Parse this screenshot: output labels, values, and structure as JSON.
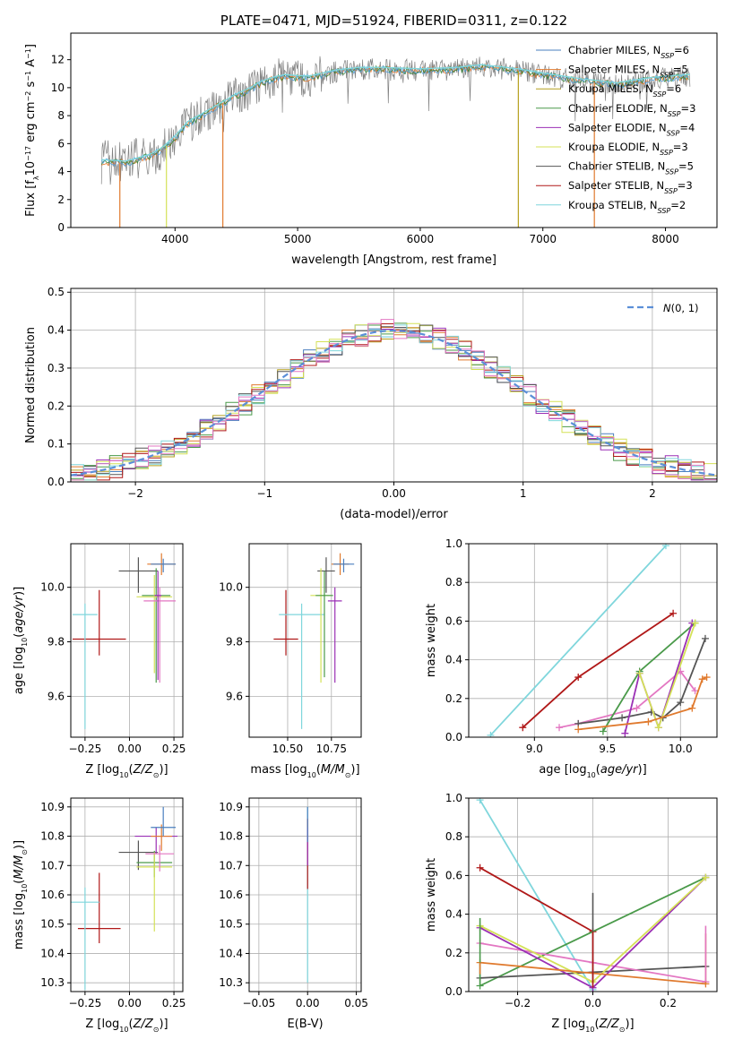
{
  "chart_data": [
    {
      "id": "spectrum",
      "type": "line",
      "title": "PLATE=0471, MJD=51924, FIBERID=0311, z=0.122",
      "xlabel": "wavelength [Angstrom, rest frame]",
      "ylabel": "Flux [f_λ 10^-17 erg cm^-2 s^-1 A^-1]",
      "xlim": [
        3150,
        8420
      ],
      "ylim": [
        0,
        13.9
      ],
      "xticks": [
        4000,
        5000,
        6000,
        7000,
        8000
      ],
      "yticks": [
        0,
        2,
        4,
        6,
        8,
        10,
        12
      ],
      "data_color": "#808080",
      "model_colors": [
        "#e66e1e",
        "#2a7f2a",
        "#4f9fdc"
      ],
      "wavelength_range": [
        3400,
        8200
      ],
      "continuum": [
        [
          3400,
          4.7
        ],
        [
          3600,
          4.6
        ],
        [
          3800,
          5.1
        ],
        [
          3900,
          5.6
        ],
        [
          4000,
          6.4
        ],
        [
          4100,
          7.4
        ],
        [
          4200,
          7.9
        ],
        [
          4300,
          8.4
        ],
        [
          4400,
          8.9
        ],
        [
          4500,
          9.4
        ],
        [
          4600,
          9.8
        ],
        [
          4700,
          10.3
        ],
        [
          4800,
          10.6
        ],
        [
          4900,
          10.8
        ],
        [
          5000,
          10.7
        ],
        [
          5100,
          10.7
        ],
        [
          5200,
          10.9
        ],
        [
          5300,
          11.1
        ],
        [
          5500,
          11.3
        ],
        [
          5700,
          11.3
        ],
        [
          6000,
          11.2
        ],
        [
          6300,
          11.3
        ],
        [
          6500,
          11.5
        ],
        [
          6800,
          11.2
        ],
        [
          7000,
          10.9
        ],
        [
          7300,
          10.5
        ],
        [
          7600,
          10.2
        ],
        [
          7900,
          10.6
        ],
        [
          8200,
          10.8
        ]
      ],
      "legend": [
        {
          "label": "Chabrier MILES, N_SSP=6",
          "color": "#4a7fbf"
        },
        {
          "label": "Salpeter MILES, N_SSP=5",
          "color": "#e07a2e"
        },
        {
          "label": "Kroupa MILES, N_SSP=6",
          "color": "#b5a01e"
        },
        {
          "label": "Chabrier ELODIE, N_SSP=3",
          "color": "#4a9a4a"
        },
        {
          "label": "Salpeter ELODIE, N_SSP=4",
          "color": "#9b30b5"
        },
        {
          "label": "Kroupa ELODIE, N_SSP=3",
          "color": "#d4e157"
        },
        {
          "label": "Chabrier STELIB, N_SSP=5",
          "color": "#555555"
        },
        {
          "label": "Salpeter STELIB, N_SSP=3",
          "color": "#b01818"
        },
        {
          "label": "Kroupa STELIB, N_SSP=2",
          "color": "#7fd6dc"
        }
      ]
    },
    {
      "id": "residuals",
      "type": "line",
      "xlabel": "(data-model)/error",
      "ylabel": "Normed distribution",
      "xlim": [
        -2.5,
        2.5
      ],
      "ylim": [
        0,
        0.51
      ],
      "xticks": [
        -2,
        -1,
        0,
        1,
        2
      ],
      "yticks": [
        0.0,
        0.1,
        0.2,
        0.3,
        0.4,
        0.5
      ],
      "bin_width": 0.1,
      "legend": "N(0,1)",
      "gaussian_color": "#5b8fd8",
      "hist_colors": [
        "#4a7fbf",
        "#e07a2e",
        "#b5a01e",
        "#4a9a4a",
        "#9b30b5",
        "#d4e157",
        "#555555",
        "#b01818",
        "#7fd6dc",
        "#e377c2"
      ]
    },
    {
      "id": "age-vs-Z",
      "type": "scatter",
      "xlabel": "Z [log10(Z/Z_sun)]",
      "ylabel": "age [log10(age/yr)]",
      "xlim": [
        -0.33,
        0.3
      ],
      "ylim": [
        9.45,
        10.16
      ],
      "xticks": [
        -0.25,
        0.0,
        0.25
      ],
      "yticks": [
        9.6,
        9.8,
        10.0
      ],
      "points": [
        {
          "x": -0.17,
          "y": 9.81,
          "xerr": 0.15,
          "yerr_lo": 0.06,
          "yerr_hi": 0.18,
          "color": "#b01818"
        },
        {
          "x": -0.25,
          "y": 9.9,
          "xerr": 0.07,
          "yerr_lo": 0.42,
          "yerr_hi": 0.04,
          "color": "#7fd6dc"
        },
        {
          "x": 0.05,
          "y": 10.06,
          "xerr": 0.11,
          "yerr_lo": 0.08,
          "yerr_hi": 0.05,
          "color": "#555555"
        },
        {
          "x": 0.15,
          "y": 9.97,
          "xerr": 0.08,
          "yerr_lo": 0.32,
          "yerr_hi": 0.1,
          "color": "#4a9a4a"
        },
        {
          "x": 0.14,
          "y": 9.965,
          "xerr": 0.1,
          "yerr_lo": 0.28,
          "yerr_hi": 0.08,
          "color": "#d4e157"
        },
        {
          "x": 0.17,
          "y": 9.95,
          "xerr": 0.09,
          "yerr_lo": 0.3,
          "yerr_hi": 0.05,
          "color": "#e377c2"
        },
        {
          "x": 0.16,
          "y": 9.97,
          "xerr": 0.02,
          "yerr_lo": 0.31,
          "yerr_hi": 0.09,
          "color": "#9b30b5"
        },
        {
          "x": 0.18,
          "y": 10.085,
          "xerr": 0.08,
          "yerr_lo": 0.04,
          "yerr_hi": 0.04,
          "color": "#e07a2e"
        },
        {
          "x": 0.19,
          "y": 10.085,
          "xerr": 0.07,
          "yerr_lo": 0.03,
          "yerr_hi": 0.02,
          "color": "#4a7fbf"
        }
      ]
    },
    {
      "id": "age-vs-mass",
      "type": "scatter",
      "xlabel": "mass [log10(M/M_sun)]",
      "ylabel": "",
      "xlim": [
        10.28,
        10.92
      ],
      "ylim": [
        9.45,
        10.16
      ],
      "xticks": [
        10.5,
        10.75
      ],
      "yticks": [
        9.6,
        9.8,
        10.0
      ],
      "points": [
        {
          "x": 10.49,
          "y": 9.81,
          "xerr": 0.07,
          "yerr_lo": 0.06,
          "yerr_hi": 0.18,
          "color": "#b01818"
        },
        {
          "x": 10.58,
          "y": 9.9,
          "xerr": 0.13,
          "yerr_lo": 0.42,
          "yerr_hi": 0.04,
          "color": "#7fd6dc"
        },
        {
          "x": 10.72,
          "y": 10.06,
          "xerr": 0.05,
          "yerr_lo": 0.08,
          "yerr_hi": 0.05,
          "color": "#555555"
        },
        {
          "x": 10.69,
          "y": 9.97,
          "xerr": 0.06,
          "yerr_lo": 0.32,
          "yerr_hi": 0.1,
          "color": "#d4e157"
        },
        {
          "x": 10.71,
          "y": 9.97,
          "xerr": 0.05,
          "yerr_lo": 0.3,
          "yerr_hi": 0.09,
          "color": "#4a9a4a"
        },
        {
          "x": 10.77,
          "y": 9.95,
          "xerr": 0.04,
          "yerr_lo": 0.3,
          "yerr_hi": 0.05,
          "color": "#9b30b5"
        },
        {
          "x": 10.8,
          "y": 10.085,
          "xerr": 0.05,
          "yerr_lo": 0.04,
          "yerr_hi": 0.04,
          "color": "#e07a2e"
        },
        {
          "x": 10.82,
          "y": 10.085,
          "xerr": 0.06,
          "yerr_lo": 0.03,
          "yerr_hi": 0.02,
          "color": "#4a7fbf"
        }
      ]
    },
    {
      "id": "weight-vs-age",
      "type": "line",
      "xlabel": "age [log10(age/yr)]",
      "ylabel": "mass weight",
      "xlim": [
        8.55,
        10.25
      ],
      "ylim": [
        0,
        1.0
      ],
      "xticks": [
        9.0,
        9.5,
        10.0
      ],
      "yticks": [
        0.0,
        0.2,
        0.4,
        0.6,
        0.8,
        1.0
      ],
      "series": [
        {
          "color": "#7fd6dc",
          "points": [
            [
              8.7,
              0.01
            ],
            [
              9.9,
              0.99
            ]
          ]
        },
        {
          "color": "#b01818",
          "points": [
            [
              8.92,
              0.05
            ],
            [
              9.3,
              0.31
            ],
            [
              9.95,
              0.64
            ]
          ]
        },
        {
          "color": "#e377c2",
          "points": [
            [
              9.17,
              0.05
            ],
            [
              9.3,
              0.07
            ],
            [
              9.7,
              0.15
            ],
            [
              10.0,
              0.34
            ],
            [
              10.1,
              0.24
            ]
          ]
        },
        {
          "color": "#555555",
          "points": [
            [
              9.3,
              0.07
            ],
            [
              9.6,
              0.1
            ],
            [
              9.8,
              0.13
            ],
            [
              9.88,
              0.1
            ],
            [
              10.0,
              0.18
            ],
            [
              10.17,
              0.51
            ]
          ]
        },
        {
          "color": "#4a9a4a",
          "points": [
            [
              9.47,
              0.03
            ],
            [
              9.72,
              0.34
            ],
            [
              10.1,
              0.59
            ]
          ]
        },
        {
          "color": "#9b30b5",
          "points": [
            [
              9.62,
              0.02
            ],
            [
              9.72,
              0.33
            ],
            [
              9.85,
              0.05
            ],
            [
              10.08,
              0.59
            ]
          ]
        },
        {
          "color": "#d4e157",
          "points": [
            [
              9.72,
              0.33
            ],
            [
              9.85,
              0.05
            ],
            [
              10.1,
              0.59
            ]
          ]
        },
        {
          "color": "#e07a2e",
          "points": [
            [
              9.3,
              0.04
            ],
            [
              9.78,
              0.08
            ],
            [
              10.08,
              0.15
            ],
            [
              10.15,
              0.3
            ],
            [
              10.18,
              0.31
            ]
          ]
        }
      ]
    },
    {
      "id": "mass-vs-Z",
      "type": "scatter",
      "xlabel": "Z [log10(Z/Z_sun)]",
      "ylabel": "mass [log10(M/M_sun)]",
      "xlim": [
        -0.33,
        0.3
      ],
      "ylim": [
        10.27,
        10.93
      ],
      "xticks": [
        -0.25,
        0.0,
        0.25
      ],
      "yticks": [
        10.3,
        10.4,
        10.5,
        10.6,
        10.7,
        10.8,
        10.9
      ],
      "points": [
        {
          "x": -0.17,
          "y": 10.485,
          "xerr": 0.12,
          "yerr_lo": 0.05,
          "yerr_hi": 0.19,
          "color": "#b01818"
        },
        {
          "x": -0.25,
          "y": 10.575,
          "xerr": 0.08,
          "yerr_lo": 0.3,
          "yerr_hi": 0.05,
          "color": "#7fd6dc"
        },
        {
          "x": 0.05,
          "y": 10.745,
          "xerr": 0.11,
          "yerr_lo": 0.06,
          "yerr_hi": 0.04,
          "color": "#555555"
        },
        {
          "x": 0.14,
          "y": 10.71,
          "xerr": 0.1,
          "yerr_lo": 0.05,
          "yerr_hi": 0.04,
          "color": "#4a9a4a"
        },
        {
          "x": 0.14,
          "y": 10.695,
          "xerr": 0.1,
          "yerr_lo": 0.22,
          "yerr_hi": 0.05,
          "color": "#d4e157"
        },
        {
          "x": 0.15,
          "y": 10.8,
          "xerr": 0.12,
          "yerr_lo": 0.06,
          "yerr_hi": 0.03,
          "color": "#9b30b5"
        },
        {
          "x": 0.17,
          "y": 10.74,
          "xerr": 0.08,
          "yerr_lo": 0.06,
          "yerr_hi": 0.03,
          "color": "#e377c2"
        },
        {
          "x": 0.18,
          "y": 10.8,
          "xerr": 0.06,
          "yerr_lo": 0.05,
          "yerr_hi": 0.04,
          "color": "#e07a2e"
        },
        {
          "x": 0.19,
          "y": 10.83,
          "xerr": 0.07,
          "yerr_lo": 0.03,
          "yerr_hi": 0.07,
          "color": "#4a7fbf"
        }
      ]
    },
    {
      "id": "mass-vs-EBV",
      "type": "scatter",
      "xlabel": "E(B-V)",
      "ylabel": "",
      "xlim": [
        -0.06,
        0.055
      ],
      "ylim": [
        10.27,
        10.93
      ],
      "xticks": [
        -0.05,
        0.0,
        0.05
      ],
      "yticks": [
        10.3,
        10.4,
        10.5,
        10.6,
        10.7,
        10.8,
        10.9
      ],
      "points": [
        {
          "x": 0.0,
          "y": 10.75,
          "lo": 10.3,
          "hi": 10.9,
          "color": "#7fd6dc"
        },
        {
          "x": 0.0,
          "y": 10.75,
          "lo": 10.62,
          "hi": 10.86,
          "color": "#b01818"
        },
        {
          "x": 0.0,
          "y": 10.75,
          "lo": 10.7,
          "hi": 10.83,
          "color": "#9b30b5"
        },
        {
          "x": 0.0,
          "y": 10.8,
          "lo": 10.78,
          "hi": 10.9,
          "color": "#4a7fbf"
        }
      ]
    },
    {
      "id": "weight-vs-Z",
      "type": "line",
      "xlabel": "Z [log10(Z/Z_sun)]",
      "ylabel": "mass weight",
      "xlim": [
        -0.33,
        0.33
      ],
      "ylim": [
        0,
        1.0
      ],
      "xticks": [
        -0.2,
        0.0,
        0.2
      ],
      "yticks": [
        0.0,
        0.2,
        0.4,
        0.6,
        0.8,
        1.0
      ],
      "series": [
        {
          "color": "#7fd6dc",
          "points": [
            [
              -0.3,
              0.99
            ],
            [
              0.0,
              0.01
            ]
          ]
        },
        {
          "color": "#b01818",
          "points": [
            [
              -0.3,
              0.64
            ],
            [
              0.0,
              0.31
            ]
          ]
        },
        {
          "color": "#4a9a4a",
          "points": [
            [
              -0.3,
              0.03
            ],
            [
              0.3,
              0.59
            ]
          ]
        },
        {
          "color": "#555555",
          "points": [
            [
              -0.3,
              0.07
            ],
            [
              0.0,
              0.1
            ],
            [
              0.3,
              0.13
            ]
          ]
        },
        {
          "color": "#e377c2",
          "points": [
            [
              -0.3,
              0.25
            ],
            [
              0.0,
              0.15
            ],
            [
              0.3,
              0.05
            ]
          ]
        },
        {
          "color": "#9b30b5",
          "points": [
            [
              -0.3,
              0.33
            ],
            [
              0.0,
              0.02
            ],
            [
              0.3,
              0.59
            ]
          ]
        },
        {
          "color": "#d4e157",
          "points": [
            [
              -0.3,
              0.34
            ],
            [
              0.0,
              0.05
            ],
            [
              0.3,
              0.59
            ]
          ]
        },
        {
          "color": "#e07a2e",
          "points": [
            [
              -0.3,
              0.15
            ],
            [
              0.3,
              0.04
            ]
          ]
        }
      ],
      "stacks": [
        {
          "x": -0.3,
          "color": "#4a9a4a",
          "lo": 0.03,
          "hi": 0.38
        },
        {
          "x": -0.3,
          "color": "#e07a2e",
          "lo": 0.09,
          "hi": 0.15
        },
        {
          "x": 0.0,
          "color": "#555555",
          "lo": 0.04,
          "hi": 0.51
        },
        {
          "x": 0.0,
          "color": "#b01818",
          "lo": 0.02,
          "hi": 0.31
        },
        {
          "x": 0.3,
          "color": "#e07a2e",
          "lo": 0.04,
          "hi": 0.3
        },
        {
          "x": 0.3,
          "color": "#e377c2",
          "lo": 0.05,
          "hi": 0.34
        }
      ]
    }
  ]
}
